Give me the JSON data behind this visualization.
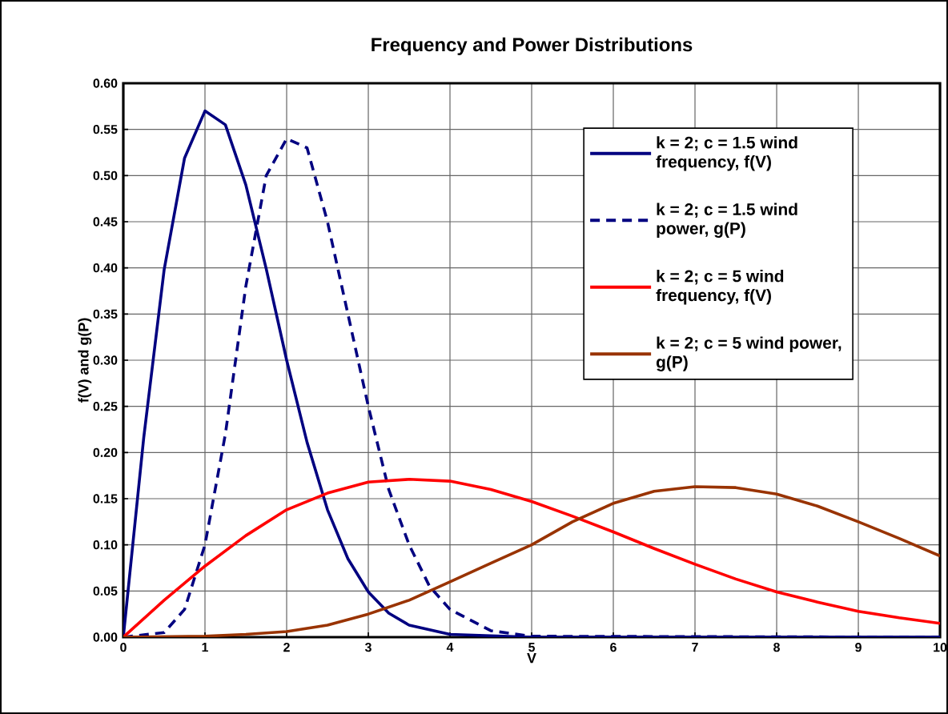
{
  "chart_data": {
    "type": "line",
    "title": "Frequency and Power Distributions",
    "xlabel": "V",
    "ylabel": "f(V) and g(P)",
    "xlim": [
      0,
      10
    ],
    "ylim": [
      0,
      0.6
    ],
    "xticks": [
      0,
      1,
      2,
      3,
      4,
      5,
      6,
      7,
      8,
      9,
      10
    ],
    "yticks": [
      {
        "value": 0,
        "label": "0.00"
      },
      {
        "value": 0.05,
        "label": "0.05"
      },
      {
        "value": 0.1,
        "label": "0.10"
      },
      {
        "value": 0.15,
        "label": "0.15"
      },
      {
        "value": 0.2,
        "label": "0.20"
      },
      {
        "value": 0.25,
        "label": "0.25"
      },
      {
        "value": 0.3,
        "label": "0.30"
      },
      {
        "value": 0.35,
        "label": "0.35"
      },
      {
        "value": 0.4,
        "label": "0.40"
      },
      {
        "value": 0.45,
        "label": "0.45"
      },
      {
        "value": 0.5,
        "label": "0.50"
      },
      {
        "value": 0.55,
        "label": "0.55"
      },
      {
        "value": 0.6,
        "label": "0.60"
      }
    ],
    "grid": true,
    "legend": "top right",
    "marker": "none",
    "series": [
      {
        "name": "k = 2; c = 1.5 wind frequency, f(V)",
        "color": "#000080",
        "line_style": "solid",
        "x": [
          0,
          0.25,
          0.5,
          0.75,
          1,
          1.25,
          1.5,
          1.75,
          2,
          2.25,
          2.5,
          2.75,
          3,
          3.25,
          3.5,
          4,
          5,
          10
        ],
        "values": [
          0,
          0.216,
          0.398,
          0.519,
          0.57,
          0.555,
          0.49,
          0.399,
          0.3,
          0.211,
          0.138,
          0.085,
          0.049,
          0.026,
          0.013,
          0.003,
          0,
          0
        ]
      },
      {
        "name": "k = 2; c = 1.5 wind power, g(P)",
        "color": "#000080",
        "line_style": "dashed",
        "x": [
          0,
          0.5,
          0.75,
          1,
          1.25,
          1.5,
          1.75,
          2,
          2.25,
          2.5,
          2.75,
          3,
          3.25,
          3.5,
          3.75,
          4,
          4.5,
          5,
          10
        ],
        "values": [
          0,
          0.005,
          0.03,
          0.1,
          0.22,
          0.38,
          0.5,
          0.54,
          0.53,
          0.45,
          0.35,
          0.25,
          0.16,
          0.1,
          0.055,
          0.03,
          0.007,
          0.001,
          0
        ]
      },
      {
        "name": "k = 2; c = 5 wind frequency, f(V)",
        "color": "#ff0000",
        "line_style": "solid",
        "x": [
          0,
          0.5,
          1,
          1.5,
          2,
          2.5,
          3,
          3.5,
          4,
          4.5,
          5,
          5.5,
          6,
          6.5,
          7,
          7.5,
          8,
          8.5,
          9,
          9.5,
          10
        ],
        "values": [
          0,
          0.04,
          0.077,
          0.11,
          0.138,
          0.156,
          0.168,
          0.171,
          0.169,
          0.16,
          0.147,
          0.131,
          0.114,
          0.096,
          0.079,
          0.063,
          0.049,
          0.038,
          0.028,
          0.021,
          0.015
        ]
      },
      {
        "name": "k = 2; c = 5 wind power, g(P)",
        "color": "#993300",
        "line_style": "solid",
        "x": [
          0,
          1,
          1.5,
          2,
          2.5,
          3,
          3.5,
          4,
          4.5,
          5,
          5.5,
          6,
          6.5,
          7,
          7.5,
          8,
          8.5,
          9,
          9.5,
          10
        ],
        "values": [
          0,
          0.001,
          0.003,
          0.006,
          0.013,
          0.025,
          0.04,
          0.06,
          0.08,
          0.1,
          0.125,
          0.145,
          0.158,
          0.163,
          0.162,
          0.155,
          0.142,
          0.125,
          0.107,
          0.088
        ]
      }
    ]
  }
}
